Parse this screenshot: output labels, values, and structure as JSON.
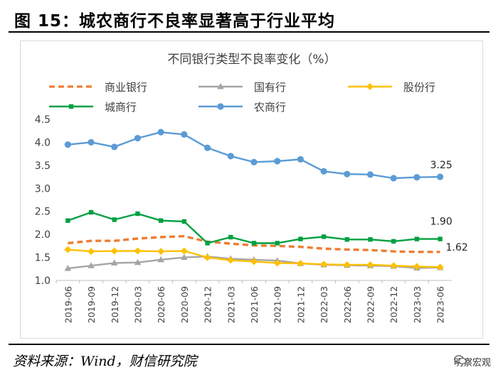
{
  "figure": {
    "title": "图 15：城农商行不良率显著高于行业平均",
    "source": "资料来源：Wind，财信研究院",
    "brand": "明察宏观"
  },
  "chart_data": {
    "type": "line",
    "title": "不同银行类型不良率变化（%）",
    "xlabel": "",
    "ylabel": "",
    "ylim": [
      1.0,
      4.5
    ],
    "yticks": [
      "1.0",
      "1.5",
      "2.0",
      "2.5",
      "3.0",
      "3.5",
      "4.0",
      "4.5"
    ],
    "categories": [
      "2019-06",
      "2019-09",
      "2019-12",
      "2020-03",
      "2020-06",
      "2020-09",
      "2020-12",
      "2021-03",
      "2021-06",
      "2021-09",
      "2021-12",
      "2022-03",
      "2022-06",
      "2022-09",
      "2022-12",
      "2023-03",
      "2023-06"
    ],
    "series": [
      {
        "name": "商业银行",
        "color": "#ED7D31",
        "style": "dashed",
        "marker": "none",
        "values": [
          1.81,
          1.86,
          1.86,
          1.91,
          1.94,
          1.96,
          1.84,
          1.8,
          1.76,
          1.75,
          1.73,
          1.69,
          1.67,
          1.66,
          1.63,
          1.62,
          1.62
        ]
      },
      {
        "name": "国有行",
        "color": "#A5A5A5",
        "style": "solid",
        "marker": "triangle",
        "values": [
          1.26,
          1.32,
          1.38,
          1.39,
          1.45,
          1.5,
          1.52,
          1.47,
          1.45,
          1.43,
          1.37,
          1.34,
          1.33,
          1.32,
          1.31,
          1.27,
          1.28
        ]
      },
      {
        "name": "股份行",
        "color": "#FFC000",
        "style": "solid",
        "marker": "diamond",
        "values": [
          1.67,
          1.63,
          1.64,
          1.64,
          1.63,
          1.64,
          1.5,
          1.44,
          1.41,
          1.38,
          1.37,
          1.35,
          1.34,
          1.34,
          1.32,
          1.3,
          1.29
        ]
      },
      {
        "name": "城商行",
        "color": "#00A040",
        "style": "solid",
        "marker": "square",
        "values": [
          2.3,
          2.48,
          2.32,
          2.45,
          2.3,
          2.28,
          1.81,
          1.94,
          1.81,
          1.81,
          1.9,
          1.95,
          1.89,
          1.89,
          1.85,
          1.9,
          1.9
        ]
      },
      {
        "name": "农商行",
        "color": "#5B9BD5",
        "style": "solid",
        "marker": "circle",
        "values": [
          3.95,
          4.0,
          3.9,
          4.09,
          4.22,
          4.17,
          3.88,
          3.7,
          3.57,
          3.59,
          3.63,
          3.37,
          3.31,
          3.3,
          3.22,
          3.24,
          3.25
        ]
      }
    ],
    "annotations": [
      {
        "series": "农商行",
        "text": "3.25"
      },
      {
        "series": "城商行",
        "text": "1.90"
      },
      {
        "series": "商业银行",
        "text": "1.62"
      }
    ],
    "legend": "top",
    "grid": false
  }
}
